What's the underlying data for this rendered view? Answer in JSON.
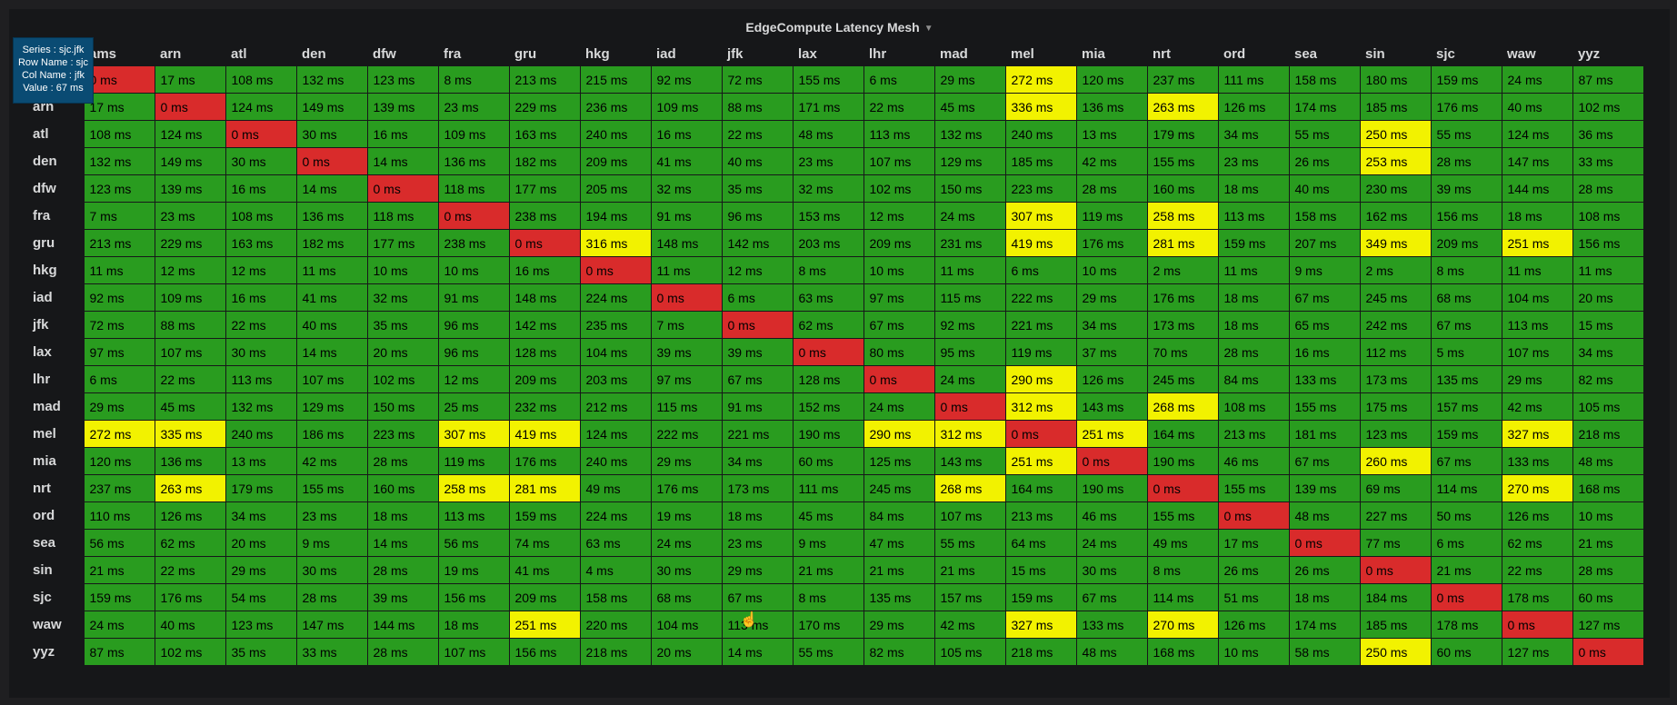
{
  "panel": {
    "title": "EdgeCompute Latency Mesh"
  },
  "tooltip": {
    "series": "Series : sjc.jfk",
    "row": "Row Name : sjc",
    "col": "Col Name : jfk",
    "value": "Value : 67 ms"
  },
  "colors": {
    "low": "#299c1f",
    "mid": "#f2f200",
    "self": "#d92b2b"
  },
  "columns": [
    "ams",
    "arn",
    "atl",
    "den",
    "dfw",
    "fra",
    "gru",
    "hkg",
    "iad",
    "jfk",
    "lax",
    "lhr",
    "mad",
    "mel",
    "mia",
    "nrt",
    "ord",
    "sea",
    "sin",
    "sjc",
    "waw",
    "yyz"
  ],
  "rows": [
    {
      "name": "ams",
      "values": [
        0,
        17,
        108,
        132,
        123,
        8,
        213,
        215,
        92,
        72,
        155,
        6,
        29,
        272,
        120,
        237,
        111,
        158,
        180,
        159,
        24,
        87
      ]
    },
    {
      "name": "arn",
      "values": [
        17,
        0,
        124,
        149,
        139,
        23,
        229,
        236,
        109,
        88,
        171,
        22,
        45,
        336,
        136,
        263,
        126,
        174,
        185,
        176,
        40,
        102
      ]
    },
    {
      "name": "atl",
      "values": [
        108,
        124,
        0,
        30,
        16,
        109,
        163,
        240,
        16,
        22,
        48,
        113,
        132,
        240,
        13,
        179,
        34,
        55,
        250,
        55,
        124,
        36
      ]
    },
    {
      "name": "den",
      "values": [
        132,
        149,
        30,
        0,
        14,
        136,
        182,
        209,
        41,
        40,
        23,
        107,
        129,
        185,
        42,
        155,
        23,
        26,
        253,
        28,
        147,
        33
      ]
    },
    {
      "name": "dfw",
      "values": [
        123,
        139,
        16,
        14,
        0,
        118,
        177,
        205,
        32,
        35,
        32,
        102,
        150,
        223,
        28,
        160,
        18,
        40,
        230,
        39,
        144,
        28
      ]
    },
    {
      "name": "fra",
      "values": [
        7,
        23,
        108,
        136,
        118,
        0,
        238,
        194,
        91,
        96,
        153,
        12,
        24,
        307,
        119,
        258,
        113,
        158,
        162,
        156,
        18,
        108
      ]
    },
    {
      "name": "gru",
      "values": [
        213,
        229,
        163,
        182,
        177,
        238,
        0,
        316,
        148,
        142,
        203,
        209,
        231,
        419,
        176,
        281,
        159,
        207,
        349,
        209,
        251,
        156
      ]
    },
    {
      "name": "hkg",
      "values": [
        11,
        12,
        12,
        11,
        10,
        10,
        16,
        0,
        11,
        12,
        8,
        10,
        11,
        6,
        10,
        2,
        11,
        9,
        2,
        8,
        11,
        11
      ]
    },
    {
      "name": "iad",
      "values": [
        92,
        109,
        16,
        41,
        32,
        91,
        148,
        224,
        0,
        6,
        63,
        97,
        115,
        222,
        29,
        176,
        18,
        67,
        245,
        68,
        104,
        20
      ]
    },
    {
      "name": "jfk",
      "values": [
        72,
        88,
        22,
        40,
        35,
        96,
        142,
        235,
        7,
        0,
        62,
        67,
        92,
        221,
        34,
        173,
        18,
        65,
        242,
        67,
        113,
        15
      ]
    },
    {
      "name": "lax",
      "values": [
        97,
        107,
        30,
        14,
        20,
        96,
        128,
        104,
        39,
        39,
        0,
        80,
        95,
        119,
        37,
        70,
        28,
        16,
        112,
        5,
        107,
        34
      ]
    },
    {
      "name": "lhr",
      "values": [
        6,
        22,
        113,
        107,
        102,
        12,
        209,
        203,
        97,
        67,
        128,
        0,
        24,
        290,
        126,
        245,
        84,
        133,
        173,
        135,
        29,
        82
      ]
    },
    {
      "name": "mad",
      "values": [
        29,
        45,
        132,
        129,
        150,
        25,
        232,
        212,
        115,
        91,
        152,
        24,
        0,
        312,
        143,
        268,
        108,
        155,
        175,
        157,
        42,
        105
      ]
    },
    {
      "name": "mel",
      "values": [
        272,
        335,
        240,
        186,
        223,
        307,
        419,
        124,
        222,
        221,
        190,
        290,
        312,
        0,
        251,
        164,
        213,
        181,
        123,
        159,
        327,
        218
      ]
    },
    {
      "name": "mia",
      "values": [
        120,
        136,
        13,
        42,
        28,
        119,
        176,
        240,
        29,
        34,
        60,
        125,
        143,
        251,
        0,
        190,
        46,
        67,
        260,
        67,
        133,
        48
      ]
    },
    {
      "name": "nrt",
      "values": [
        237,
        263,
        179,
        155,
        160,
        258,
        281,
        49,
        176,
        173,
        111,
        245,
        268,
        164,
        190,
        0,
        155,
        139,
        69,
        114,
        270,
        168
      ]
    },
    {
      "name": "ord",
      "values": [
        110,
        126,
        34,
        23,
        18,
        113,
        159,
        224,
        19,
        18,
        45,
        84,
        107,
        213,
        46,
        155,
        0,
        48,
        227,
        50,
        126,
        10
      ]
    },
    {
      "name": "sea",
      "values": [
        56,
        62,
        20,
        9,
        14,
        56,
        74,
        63,
        24,
        23,
        9,
        47,
        55,
        64,
        24,
        49,
        17,
        0,
        77,
        6,
        62,
        21
      ]
    },
    {
      "name": "sin",
      "values": [
        21,
        22,
        29,
        30,
        28,
        19,
        41,
        4,
        30,
        29,
        21,
        21,
        21,
        15,
        30,
        8,
        26,
        26,
        0,
        21,
        22,
        28
      ]
    },
    {
      "name": "sjc",
      "values": [
        159,
        176,
        54,
        28,
        39,
        156,
        209,
        158,
        68,
        67,
        8,
        135,
        157,
        159,
        67,
        114,
        51,
        18,
        184,
        0,
        178,
        60
      ]
    },
    {
      "name": "waw",
      "values": [
        24,
        40,
        123,
        147,
        144,
        18,
        251,
        220,
        104,
        113,
        170,
        29,
        42,
        327,
        133,
        270,
        126,
        174,
        185,
        178,
        0,
        127
      ]
    },
    {
      "name": "yyz",
      "values": [
        87,
        102,
        35,
        33,
        28,
        107,
        156,
        218,
        20,
        14,
        55,
        82,
        105,
        218,
        48,
        168,
        10,
        58,
        250,
        60,
        127,
        0
      ]
    }
  ],
  "unit": "ms"
}
